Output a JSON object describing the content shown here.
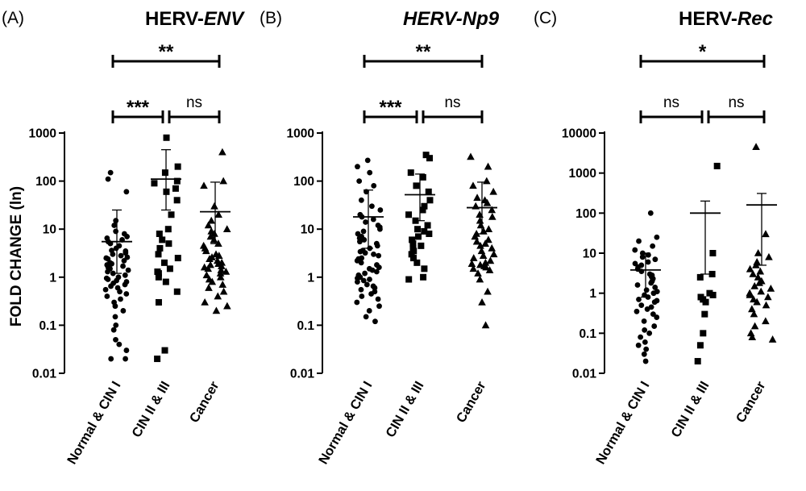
{
  "y_axis_title": "FOLD CHANGE (ln)",
  "chart_data": [
    {
      "type": "scatter",
      "panel": "(A)",
      "title_main": "HERV-",
      "title_italic": "ENV",
      "title_italic_all": false,
      "y_scale": "log",
      "ylim": [
        0.01,
        1000
      ],
      "y_ticks": [
        0.01,
        0.1,
        1,
        10,
        100,
        1000
      ],
      "y_tick_labels": [
        "0.01",
        "0.1",
        "1",
        "10",
        "100",
        "1000"
      ],
      "categories": [
        "Normal & CIN I",
        "CIN II & III",
        "Cancer"
      ],
      "groups": [
        {
          "name": "Normal & CIN I",
          "marker": "circle",
          "mean": 5.5,
          "err_low": 1.2,
          "err_high": 25,
          "values": [
            150,
            110,
            60,
            15,
            12,
            9,
            8,
            7,
            6.5,
            6,
            5.5,
            5,
            4.5,
            4,
            3.6,
            3.2,
            3,
            2.8,
            2.6,
            2.4,
            2.2,
            2,
            1.9,
            1.8,
            1.6,
            1.5,
            1.4,
            1.3,
            1.2,
            1.1,
            1,
            0.95,
            0.9,
            0.8,
            0.7,
            0.65,
            0.6,
            0.55,
            0.5,
            0.45,
            0.4,
            0.35,
            0.3,
            0.25,
            0.2,
            0.15,
            0.1,
            0.08,
            0.05,
            0.04,
            0.03,
            0.02,
            0.02,
            1.7,
            2.5,
            3.5,
            0.75,
            0.85
          ]
        },
        {
          "name": "CIN II & III",
          "marker": "square",
          "mean": 110,
          "err_low": 25,
          "err_high": 450,
          "values": [
            800,
            200,
            150,
            100,
            90,
            70,
            60,
            40,
            20,
            10,
            8,
            6,
            5,
            4,
            3,
            2.5,
            2,
            1.5,
            1.3,
            1.2,
            1,
            0.8,
            0.5,
            0.3,
            0.03,
            0.02
          ]
        },
        {
          "name": "Cancer",
          "marker": "triangle",
          "mean": 23,
          "err_low": 5,
          "err_high": 95,
          "values": [
            400,
            100,
            80,
            30,
            20,
            15,
            12,
            10,
            9,
            8,
            7,
            6,
            5,
            4.5,
            4,
            3.5,
            3,
            2.8,
            2.6,
            2.4,
            2.2,
            2,
            1.9,
            1.8,
            1.7,
            1.6,
            1.5,
            1.4,
            1.3,
            1.2,
            1.1,
            1,
            0.9,
            0.8,
            0.7,
            0.6,
            0.5,
            0.4,
            0.3,
            0.25,
            0.2
          ]
        }
      ],
      "brackets": [
        {
          "from": 0,
          "to": 1,
          "label": "***",
          "level": 1
        },
        {
          "from": 1,
          "to": 2,
          "label": "ns",
          "level": 1
        },
        {
          "from": 0,
          "to": 2,
          "label": "**",
          "level": 2
        }
      ]
    },
    {
      "type": "scatter",
      "panel": "(B)",
      "title_main": "HERV-Np9",
      "title_italic": "",
      "title_italic_all": true,
      "y_scale": "log",
      "ylim": [
        0.01,
        1000
      ],
      "y_ticks": [
        0.01,
        0.1,
        1,
        10,
        100,
        1000
      ],
      "y_tick_labels": [
        "0.01",
        "0.1",
        "1",
        "10",
        "100",
        "1000"
      ],
      "categories": [
        "Normal & CIN I",
        "CIN II & III",
        "Cancer"
      ],
      "groups": [
        {
          "name": "Normal & CIN I",
          "marker": "circle",
          "mean": 18,
          "err_low": 4,
          "err_high": 65,
          "values": [
            270,
            200,
            150,
            100,
            80,
            60,
            40,
            30,
            25,
            20,
            18,
            16,
            14,
            12,
            10,
            9,
            8,
            7,
            6,
            5.5,
            5,
            4.5,
            4,
            3.6,
            3.2,
            3,
            2.8,
            2.5,
            2.2,
            2,
            1.8,
            1.6,
            1.5,
            1.4,
            1.3,
            1.2,
            1.1,
            1,
            0.95,
            0.9,
            0.85,
            0.8,
            0.7,
            0.65,
            0.6,
            0.55,
            0.5,
            0.45,
            0.4,
            0.35,
            0.3,
            0.25,
            0.2,
            0.15,
            0.12,
            2.4,
            3.4,
            6.5,
            11
          ]
        },
        {
          "name": "CIN II & III",
          "marker": "square",
          "mean": 52,
          "err_low": 15,
          "err_high": 140,
          "values": [
            350,
            300,
            150,
            120,
            80,
            60,
            40,
            30,
            25,
            20,
            15,
            12,
            10,
            9,
            8,
            7,
            6,
            5,
            4.5,
            4,
            3.5,
            3,
            2.5,
            2,
            1.5,
            1,
            0.9
          ]
        },
        {
          "name": "Cancer",
          "marker": "triangle",
          "mean": 28,
          "err_low": 8,
          "err_high": 95,
          "values": [
            320,
            200,
            100,
            80,
            60,
            45,
            40,
            35,
            30,
            25,
            20,
            18,
            15,
            12,
            10,
            9,
            8,
            7,
            6,
            5.5,
            5,
            4.5,
            4,
            3.5,
            3,
            2.8,
            2.5,
            2.2,
            2,
            1.9,
            1.8,
            1.7,
            1.6,
            1.5,
            1.4,
            1.2,
            0.9,
            0.5,
            0.3,
            0.1
          ]
        }
      ],
      "brackets": [
        {
          "from": 0,
          "to": 1,
          "label": "***",
          "level": 1
        },
        {
          "from": 1,
          "to": 2,
          "label": "ns",
          "level": 1
        },
        {
          "from": 0,
          "to": 2,
          "label": "**",
          "level": 2
        }
      ]
    },
    {
      "type": "scatter",
      "panel": "(C)",
      "title_main": "HERV-",
      "title_italic": "Rec",
      "title_italic_all": false,
      "y_scale": "log",
      "ylim": [
        0.01,
        10000
      ],
      "y_ticks": [
        0.01,
        0.1,
        1,
        10,
        100,
        1000,
        10000
      ],
      "y_tick_labels": [
        "0.01",
        "0.1",
        "1",
        "10",
        "100",
        "1000",
        "10000"
      ],
      "categories": [
        "Normal & CIN I",
        "CIN II & III",
        "Cancer"
      ],
      "groups": [
        {
          "name": "Normal & CIN I",
          "marker": "circle",
          "mean": 3.8,
          "err_low": 0.8,
          "err_high": 10,
          "values": [
            100,
            25,
            20,
            15,
            12,
            10,
            9,
            8,
            7,
            6,
            5,
            4.5,
            4,
            3.5,
            3,
            2.6,
            2.3,
            2,
            1.8,
            1.6,
            1.4,
            1.2,
            1,
            0.9,
            0.8,
            0.7,
            0.6,
            0.5,
            0.45,
            0.4,
            0.35,
            0.3,
            0.25,
            0.2,
            0.15,
            0.12,
            0.1,
            0.08,
            0.06,
            0.05,
            0.04,
            0.03,
            0.02,
            1.1,
            2.8,
            0.65,
            5.5
          ]
        },
        {
          "name": "CIN II & III",
          "marker": "square",
          "mean": 100,
          "err_low": 3,
          "err_high": 200,
          "values": [
            1500,
            10,
            3,
            2.5,
            1,
            0.9,
            0.8,
            0.7,
            0.6,
            0.3,
            0.1,
            0.05,
            0.02
          ]
        },
        {
          "name": "Cancer",
          "marker": "triangle",
          "mean": 160,
          "err_low": 5,
          "err_high": 310,
          "values": [
            4500,
            30,
            10,
            8,
            6,
            5,
            4,
            3.5,
            3,
            2.5,
            2,
            1.8,
            1.5,
            1.3,
            1.1,
            1,
            0.9,
            0.8,
            0.7,
            0.6,
            0.5,
            0.4,
            0.3,
            0.2,
            0.15,
            0.1,
            0.08,
            0.07
          ]
        }
      ],
      "brackets": [
        {
          "from": 0,
          "to": 1,
          "label": "ns",
          "level": 1
        },
        {
          "from": 1,
          "to": 2,
          "label": "ns",
          "level": 1
        },
        {
          "from": 0,
          "to": 2,
          "label": "*",
          "level": 2
        }
      ]
    }
  ]
}
